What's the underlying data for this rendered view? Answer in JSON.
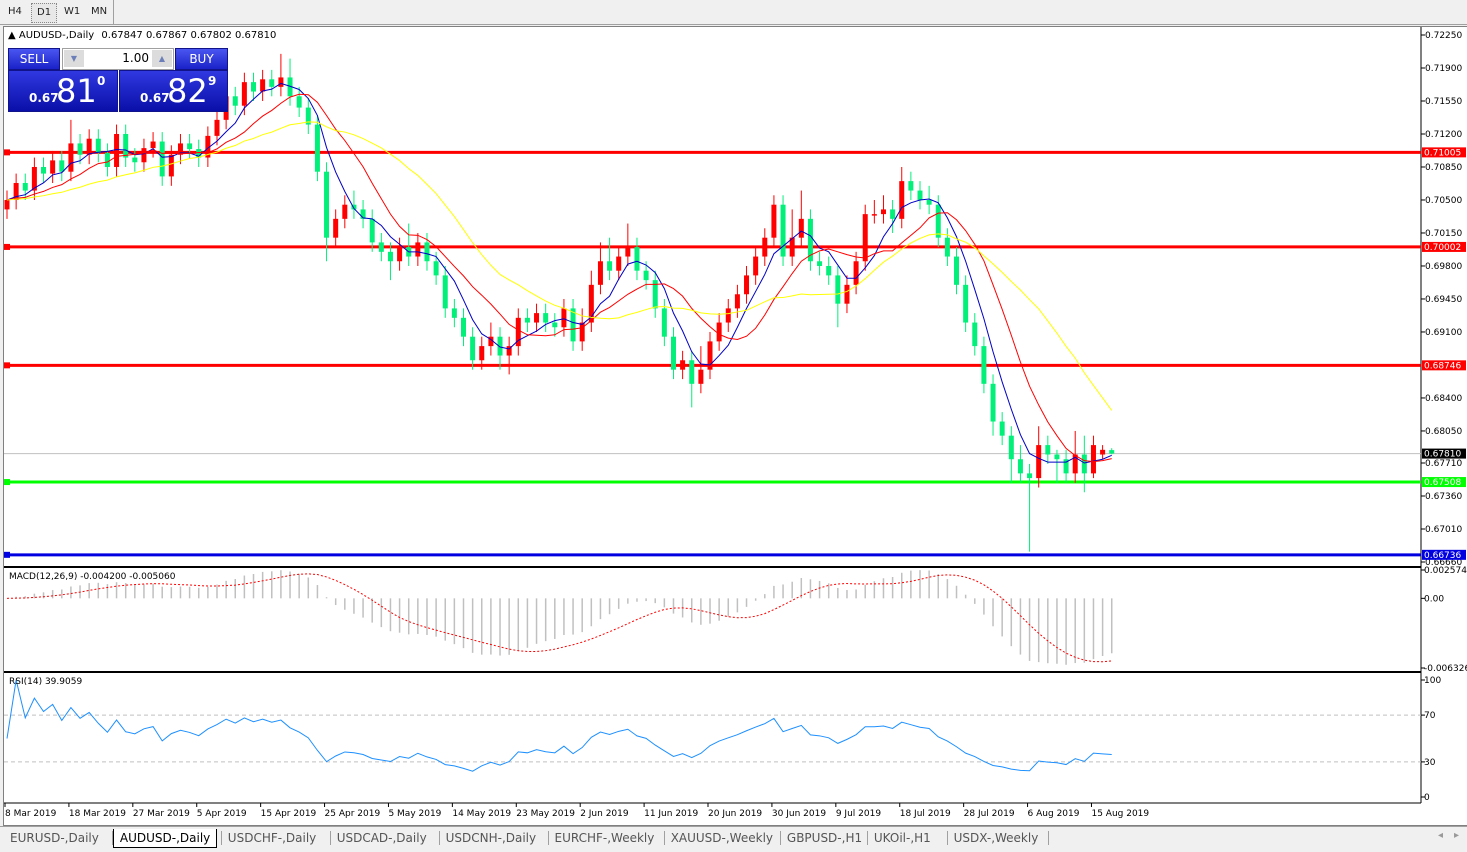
{
  "toolbar": {
    "timeframes": [
      "H4",
      "D1",
      "W1",
      "MN"
    ],
    "active": "D1"
  },
  "chart_header": {
    "symbol": "AUDUSD-,Daily",
    "ohlc": "0.67847 0.67867 0.67802 0.67810"
  },
  "trade_panel": {
    "sell_label": "SELL",
    "buy_label": "BUY",
    "lot": "1.00",
    "sell_prefix": "0.67",
    "sell_big": "81",
    "sell_sup": "0",
    "buy_prefix": "0.67",
    "buy_big": "82",
    "buy_sup": "9"
  },
  "colors": {
    "bull": "#ff0000",
    "bear": "#00f07a",
    "ma_fast": "#0000c8",
    "ma_mid": "#ff0000",
    "ma_slow": "#ffff00",
    "current_price": "#c0c0c0"
  },
  "tabs": [
    "EURUSD-,Daily",
    "AUDUSD-,Daily",
    "USDCHF-,Daily",
    "USDCAD-,Daily",
    "USDCNH-,Daily",
    "EURCHF-,Weekly",
    "XAUUSD-,Weekly",
    "GBPUSD-,H1",
    "UKOil-,H1",
    "USDX-,Weekly"
  ],
  "active_tab": "AUDUSD-,Daily",
  "chart_data": [
    {
      "type": "candlestick",
      "title": "AUDUSD-,Daily",
      "ylim": [
        0.6666,
        0.7225
      ],
      "y_ticks": [
        "0.72250",
        "0.71900",
        "0.71550",
        "0.71200",
        "0.70850",
        "0.70500",
        "0.70150",
        "0.69800",
        "0.69450",
        "0.69100",
        "0.68400",
        "0.68050",
        "0.67710",
        "0.67360",
        "0.67010",
        "0.66660"
      ],
      "x_ticks": [
        "8 Mar 2019",
        "18 Mar 2019",
        "27 Mar 2019",
        "5 Apr 2019",
        "15 Apr 2019",
        "25 Apr 2019",
        "5 May 2019",
        "14 May 2019",
        "23 May 2019",
        "2 Jun 2019",
        "11 Jun 2019",
        "20 Jun 2019",
        "30 Jun 2019",
        "9 Jul 2019",
        "18 Jul 2019",
        "28 Jul 2019",
        "6 Aug 2019",
        "15 Aug 2019"
      ],
      "horizontal_lines": [
        {
          "value": "0.71005",
          "color": "#ff0000"
        },
        {
          "value": "0.70002",
          "color": "#ff0000"
        },
        {
          "value": "0.68746",
          "color": "#ff0000"
        },
        {
          "value": "0.67508",
          "color": "#00ff00"
        },
        {
          "value": "0.66736",
          "color": "#0000e0"
        }
      ],
      "current_price": "0.67810",
      "ohlc": [
        [
          0.704,
          0.706,
          0.703,
          0.705
        ],
        [
          0.705,
          0.7078,
          0.704,
          0.7068
        ],
        [
          0.7068,
          0.7078,
          0.705,
          0.706
        ],
        [
          0.706,
          0.7095,
          0.705,
          0.7085
        ],
        [
          0.7085,
          0.7095,
          0.7068,
          0.7078
        ],
        [
          0.7078,
          0.7102,
          0.7068,
          0.7092
        ],
        [
          0.7092,
          0.7102,
          0.707,
          0.708
        ],
        [
          0.708,
          0.7135,
          0.707,
          0.711
        ],
        [
          0.711,
          0.712,
          0.7088,
          0.7098
        ],
        [
          0.7098,
          0.7125,
          0.7088,
          0.7115
        ],
        [
          0.7115,
          0.7125,
          0.709,
          0.71
        ],
        [
          0.71,
          0.711,
          0.7075,
          0.7085
        ],
        [
          0.7085,
          0.713,
          0.7075,
          0.712
        ],
        [
          0.712,
          0.713,
          0.7085,
          0.7095
        ],
        [
          0.7095,
          0.7105,
          0.708,
          0.709
        ],
        [
          0.709,
          0.7115,
          0.708,
          0.7105
        ],
        [
          0.7105,
          0.7122,
          0.7095,
          0.7112
        ],
        [
          0.7112,
          0.7122,
          0.7065,
          0.7075
        ],
        [
          0.7075,
          0.7108,
          0.7065,
          0.7098
        ],
        [
          0.7098,
          0.712,
          0.7088,
          0.711
        ],
        [
          0.711,
          0.712,
          0.7094,
          0.7104
        ],
        [
          0.7104,
          0.7114,
          0.7085,
          0.7095
        ],
        [
          0.7095,
          0.7128,
          0.7085,
          0.7118
        ],
        [
          0.7118,
          0.7145,
          0.7108,
          0.7135
        ],
        [
          0.7135,
          0.718,
          0.7125,
          0.716
        ],
        [
          0.716,
          0.717,
          0.714,
          0.715
        ],
        [
          0.715,
          0.7185,
          0.714,
          0.7175
        ],
        [
          0.7175,
          0.7185,
          0.7155,
          0.7165
        ],
        [
          0.7165,
          0.7188,
          0.7155,
          0.7178
        ],
        [
          0.7178,
          0.7188,
          0.716,
          0.717
        ],
        [
          0.717,
          0.7205,
          0.716,
          0.718
        ],
        [
          0.718,
          0.72,
          0.715,
          0.716
        ],
        [
          0.716,
          0.717,
          0.7138,
          0.7148
        ],
        [
          0.7148,
          0.7158,
          0.712,
          0.713
        ],
        [
          0.713,
          0.714,
          0.707,
          0.708
        ],
        [
          0.708,
          0.709,
          0.6985,
          0.701
        ],
        [
          0.701,
          0.704,
          0.7,
          0.703
        ],
        [
          0.703,
          0.7055,
          0.702,
          0.7045
        ],
        [
          0.7045,
          0.706,
          0.703,
          0.704
        ],
        [
          0.704,
          0.705,
          0.702,
          0.703
        ],
        [
          0.703,
          0.704,
          0.6995,
          0.7005
        ],
        [
          0.7005,
          0.7015,
          0.6985,
          0.6995
        ],
        [
          0.6995,
          0.7005,
          0.6965,
          0.6985
        ],
        [
          0.6985,
          0.701,
          0.6975,
          0.7
        ],
        [
          0.7,
          0.7025,
          0.698,
          0.699
        ],
        [
          0.699,
          0.7015,
          0.698,
          0.7005
        ],
        [
          0.7005,
          0.7015,
          0.6975,
          0.6985
        ],
        [
          0.6985,
          0.6995,
          0.696,
          0.697
        ],
        [
          0.697,
          0.698,
          0.6925,
          0.6935
        ],
        [
          0.6935,
          0.6945,
          0.6915,
          0.6925
        ],
        [
          0.6925,
          0.6935,
          0.6895,
          0.6905
        ],
        [
          0.6905,
          0.6915,
          0.687,
          0.688
        ],
        [
          0.688,
          0.6905,
          0.687,
          0.6895
        ],
        [
          0.6895,
          0.692,
          0.6885,
          0.6905
        ],
        [
          0.6905,
          0.6915,
          0.687,
          0.6885
        ],
        [
          0.6885,
          0.6905,
          0.6865,
          0.6895
        ],
        [
          0.6895,
          0.6935,
          0.6885,
          0.6925
        ],
        [
          0.6925,
          0.6935,
          0.691,
          0.692
        ],
        [
          0.692,
          0.694,
          0.691,
          0.693
        ],
        [
          0.693,
          0.694,
          0.691,
          0.692
        ],
        [
          0.692,
          0.693,
          0.6905,
          0.6915
        ],
        [
          0.6915,
          0.6945,
          0.6905,
          0.6935
        ],
        [
          0.6935,
          0.6945,
          0.689,
          0.69
        ],
        [
          0.69,
          0.6935,
          0.689,
          0.692
        ],
        [
          0.692,
          0.6975,
          0.691,
          0.696
        ],
        [
          0.696,
          0.7005,
          0.695,
          0.6985
        ],
        [
          0.6985,
          0.701,
          0.6965,
          0.6975
        ],
        [
          0.6975,
          0.7,
          0.6965,
          0.699
        ],
        [
          0.699,
          0.7025,
          0.698,
          0.7
        ],
        [
          0.7,
          0.701,
          0.6965,
          0.6975
        ],
        [
          0.6975,
          0.6985,
          0.6955,
          0.6965
        ],
        [
          0.6965,
          0.6975,
          0.6925,
          0.6935
        ],
        [
          0.6935,
          0.6945,
          0.6895,
          0.6905
        ],
        [
          0.6905,
          0.6915,
          0.686,
          0.687
        ],
        [
          0.687,
          0.689,
          0.686,
          0.688
        ],
        [
          0.688,
          0.689,
          0.683,
          0.6855
        ],
        [
          0.6855,
          0.6895,
          0.6845,
          0.687
        ],
        [
          0.687,
          0.691,
          0.686,
          0.69
        ],
        [
          0.69,
          0.693,
          0.689,
          0.692
        ],
        [
          0.692,
          0.6945,
          0.691,
          0.6935
        ],
        [
          0.6935,
          0.696,
          0.6925,
          0.695
        ],
        [
          0.695,
          0.698,
          0.694,
          0.697
        ],
        [
          0.697,
          0.7,
          0.696,
          0.699
        ],
        [
          0.699,
          0.702,
          0.698,
          0.701
        ],
        [
          0.701,
          0.7055,
          0.7,
          0.7045
        ],
        [
          0.7045,
          0.7055,
          0.698,
          0.699
        ],
        [
          0.699,
          0.704,
          0.698,
          0.701
        ],
        [
          0.701,
          0.706,
          0.7,
          0.703
        ],
        [
          0.703,
          0.704,
          0.6975,
          0.6985
        ],
        [
          0.6985,
          0.6995,
          0.697,
          0.698
        ],
        [
          0.698,
          0.699,
          0.696,
          0.697
        ],
        [
          0.697,
          0.698,
          0.6915,
          0.694
        ],
        [
          0.694,
          0.697,
          0.693,
          0.696
        ],
        [
          0.696,
          0.6995,
          0.695,
          0.6985
        ],
        [
          0.6985,
          0.7045,
          0.6975,
          0.7035
        ],
        [
          0.7035,
          0.705,
          0.7025,
          0.7035
        ],
        [
          0.7035,
          0.7055,
          0.7025,
          0.704
        ],
        [
          0.704,
          0.705,
          0.7015,
          0.703
        ],
        [
          0.703,
          0.7085,
          0.702,
          0.707
        ],
        [
          0.707,
          0.708,
          0.705,
          0.706
        ],
        [
          0.706,
          0.707,
          0.704,
          0.705
        ],
        [
          0.705,
          0.7065,
          0.7035,
          0.7045
        ],
        [
          0.7045,
          0.7055,
          0.7,
          0.701
        ],
        [
          0.701,
          0.702,
          0.698,
          0.699
        ],
        [
          0.699,
          0.7,
          0.695,
          0.696
        ],
        [
          0.696,
          0.697,
          0.691,
          0.692
        ],
        [
          0.692,
          0.693,
          0.6885,
          0.6895
        ],
        [
          0.6895,
          0.6905,
          0.6845,
          0.6855
        ],
        [
          0.6855,
          0.6865,
          0.68,
          0.6815
        ],
        [
          0.6815,
          0.6825,
          0.679,
          0.68
        ],
        [
          0.68,
          0.681,
          0.675,
          0.6775
        ],
        [
          0.6775,
          0.679,
          0.675,
          0.676
        ],
        [
          0.676,
          0.677,
          0.6677,
          0.6755
        ],
        [
          0.6755,
          0.681,
          0.6745,
          0.679
        ],
        [
          0.679,
          0.68,
          0.677,
          0.678
        ],
        [
          0.678,
          0.6785,
          0.675,
          0.6775
        ],
        [
          0.6775,
          0.6785,
          0.675,
          0.676
        ],
        [
          0.676,
          0.6805,
          0.675,
          0.678
        ],
        [
          0.678,
          0.68,
          0.674,
          0.676
        ],
        [
          0.676,
          0.68,
          0.6755,
          0.679
        ],
        [
          0.678,
          0.679,
          0.6775,
          0.6785
        ],
        [
          0.67847,
          0.67867,
          0.67802,
          0.6781
        ]
      ]
    },
    {
      "type": "bar+line",
      "title": "MACD(12,26,9) -0.004200 -0.005060",
      "ylim": [
        -0.006326,
        0.002574
      ],
      "y_ticks": [
        "0.002574",
        "0.00",
        "-0.006326"
      ],
      "histogram_color": "#c0c0c0",
      "signal_color": "#ff0000"
    },
    {
      "type": "line",
      "title": "RSI(14) 39.9059",
      "ylim": [
        0,
        100
      ],
      "y_ticks": [
        "100",
        "70",
        "30",
        "0"
      ],
      "levels": [
        70,
        30
      ],
      "line_color": "#1e90ff"
    }
  ]
}
